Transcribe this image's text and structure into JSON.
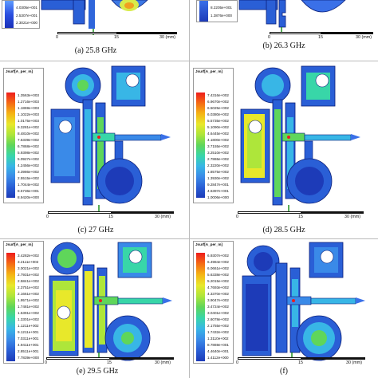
{
  "legend_title": "Jsurf[A_per_m]",
  "panels": [
    {
      "caption": "(a) 25.8 GHz",
      "legend": [
        "4.0305e+001",
        "2.5307e+001",
        "2.3021e+000"
      ]
    },
    {
      "caption": "(b) 26.3 GHz",
      "legend": [
        "8.2205e+001",
        "1.3876e+000"
      ]
    },
    {
      "caption": "(c) 27 GHz",
      "legend": [
        "1.3563e+003",
        "1.2716e+003",
        "1.1869e+003",
        "1.1022e+003",
        "1.0175e+003",
        "9.3281e+002",
        "8.4810e+002",
        "7.6339e+002",
        "6.7868e+002",
        "5.9398e+002",
        "5.0927e+002",
        "4.2456e+002",
        "3.3986e+002",
        "2.5515e+002",
        "1.7044e+002",
        "8.5736e+001",
        "8.9420e+000"
      ]
    },
    {
      "caption": "(d) 28.5 GHz",
      "legend": [
        "7.4316e+002",
        "6.9670e+002",
        "6.5025e+002",
        "6.0380e+002",
        "5.5735e+002",
        "5.1090e+002",
        "4.6445e+002",
        "4.1800e+002",
        "3.7155e+002",
        "3.2510e+002",
        "2.7865e+002",
        "2.3220e+002",
        "1.8575e+002",
        "1.3930e+002",
        "9.2847e+001",
        "4.6397e+001",
        "1.0006e+000"
      ]
    },
    {
      "caption": "(e) 29.5 GHz",
      "legend": [
        "3.4282e+002",
        "3.2111e+002",
        "3.0021e+002",
        "2.7931e+002",
        "2.5841e+002",
        "2.3751e+002",
        "2.1661e+002",
        "1.9571e+002",
        "1.7481e+002",
        "1.5391e+002",
        "1.3301e+002",
        "1.1211e+002",
        "9.1211e+001",
        "7.0311e+001",
        "4.9411e+001",
        "2.8511e+001",
        "7.7839e+000"
      ]
    },
    {
      "caption": "(f)",
      "legend": [
        "6.9307e+002",
        "6.4984e+002",
        "6.0661e+002",
        "5.6338e+002",
        "5.2015e+002",
        "4.7693e+002",
        "4.3370e+002",
        "3.9047e+002",
        "3.4724e+002",
        "3.0401e+002",
        "2.6078e+002",
        "2.1755e+002",
        "1.7432e+002",
        "1.3110e+002",
        "8.7869e+001",
        "4.4640e+001",
        "1.4112e+000"
      ]
    }
  ],
  "scale_ticks": [
    "0",
    "15",
    "30 (mm)"
  ],
  "colors": {
    "metal": "#2a5fd6",
    "metal_dark": "#1c3aa8",
    "edge": "#0b1f7a"
  }
}
